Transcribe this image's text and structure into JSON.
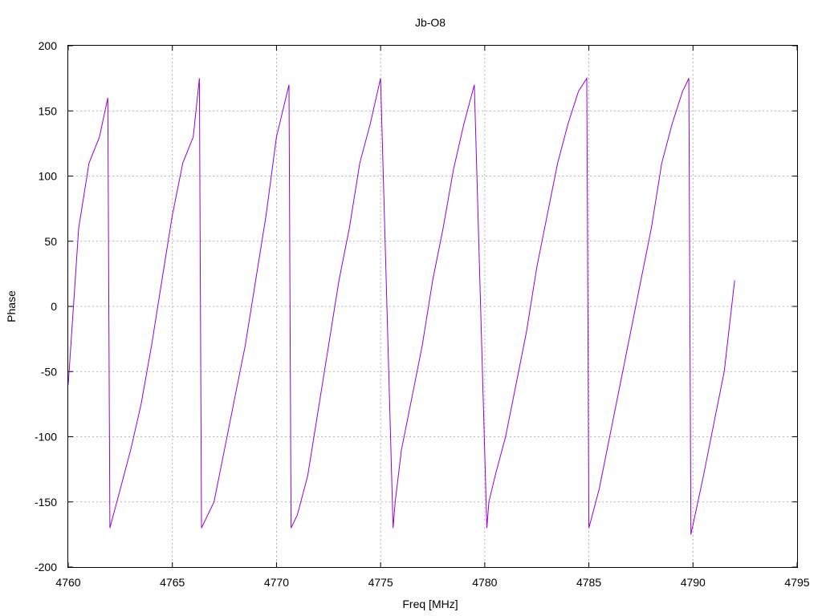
{
  "chart_data": {
    "type": "line",
    "title": "Jb-O8",
    "xlabel": "Freq [MHz]",
    "ylabel": "Phase",
    "xlim": [
      4760,
      4795
    ],
    "ylim": [
      -200,
      200
    ],
    "xticks": [
      4760,
      4765,
      4770,
      4775,
      4780,
      4785,
      4790,
      4795
    ],
    "yticks": [
      -200,
      -150,
      -100,
      -50,
      0,
      50,
      100,
      150,
      200
    ],
    "grid": true,
    "legend": "none",
    "colors": {
      "series": "#9400d3"
    },
    "series": [
      {
        "x": [
          4760.0,
          4760.5,
          4761.0,
          4761.5,
          4761.9,
          4762.0,
          4762.5,
          4763.0,
          4763.5,
          4764.0,
          4764.5,
          4765.0,
          4765.5,
          4766.0,
          4766.3,
          4766.4,
          4767.0,
          4767.5,
          4768.0,
          4768.5,
          4769.0,
          4769.5,
          4770.0,
          4770.6,
          4770.7,
          4771.0,
          4771.5,
          4772.0,
          4772.5,
          4773.0,
          4773.5,
          4774.0,
          4774.5,
          4775.0,
          4775.6,
          4775.7,
          4776.0,
          4776.5,
          4777.0,
          4777.5,
          4778.0,
          4778.5,
          4779.0,
          4779.5,
          4780.1,
          4780.2,
          4780.5,
          4781.0,
          4781.5,
          4782.0,
          4782.5,
          4783.0,
          4783.5,
          4784.0,
          4784.5,
          4784.9,
          4785.0,
          4785.5,
          4786.0,
          4786.5,
          4787.0,
          4787.5,
          4788.0,
          4788.5,
          4789.0,
          4789.5,
          4789.8,
          4789.9,
          4790.5,
          4791.0,
          4791.5,
          4792.0
        ],
        "y": [
          -60,
          60,
          110,
          130,
          160,
          -170,
          -140,
          -110,
          -75,
          -30,
          20,
          70,
          110,
          130,
          175,
          -170,
          -150,
          -110,
          -70,
          -30,
          20,
          70,
          130,
          170,
          -170,
          -160,
          -130,
          -80,
          -30,
          20,
          60,
          110,
          140,
          175,
          -170,
          -150,
          -110,
          -70,
          -30,
          20,
          60,
          105,
          140,
          170,
          -170,
          -150,
          -130,
          -100,
          -60,
          -20,
          30,
          70,
          110,
          140,
          165,
          175,
          -170,
          -140,
          -100,
          -60,
          -20,
          20,
          60,
          110,
          140,
          165,
          175,
          -175,
          -130,
          -90,
          -50,
          20
        ]
      }
    ]
  }
}
